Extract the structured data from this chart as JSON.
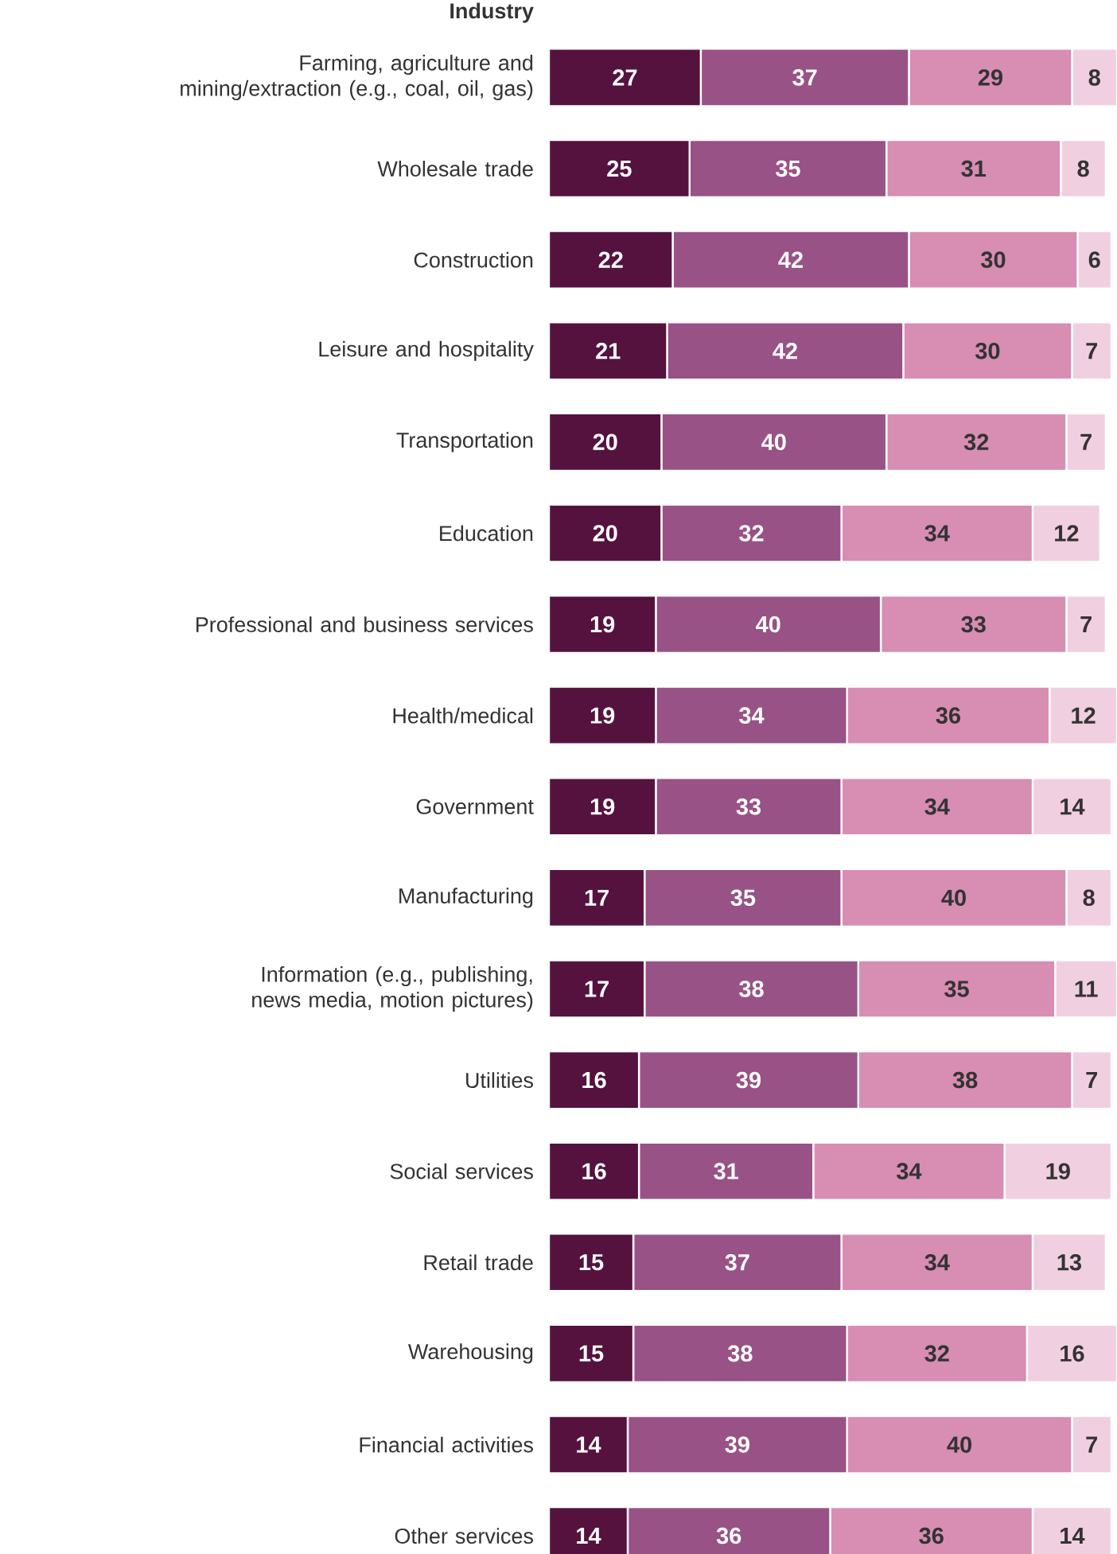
{
  "chart_data": {
    "type": "bar",
    "orientation": "horizontal",
    "stacked": true,
    "data_labels": true,
    "ylabel": "Industry",
    "categories": [
      "Farming, agriculture and mining/extraction (e.g., coal, oil, gas)",
      "Wholesale trade",
      "Construction",
      "Leisure and hospitality",
      "Transportation",
      "Education",
      "Professional and business services",
      "Health/medical",
      "Government",
      "Manufacturing",
      "Information (e.g., publishing, news media, motion pictures)",
      "Utilities",
      "Social services",
      "Retail trade",
      "Warehousing",
      "Financial activities",
      "Other services"
    ],
    "series": [
      {
        "color": "#55123f",
        "values": [
          27,
          25,
          22,
          21,
          20,
          20,
          19,
          19,
          19,
          17,
          17,
          16,
          16,
          15,
          15,
          14,
          14
        ]
      },
      {
        "color": "#985285",
        "values": [
          37,
          35,
          42,
          42,
          40,
          32,
          40,
          34,
          33,
          35,
          38,
          39,
          31,
          37,
          38,
          39,
          36
        ]
      },
      {
        "color": "#d88db2",
        "values": [
          29,
          31,
          30,
          30,
          32,
          34,
          33,
          36,
          34,
          40,
          35,
          38,
          34,
          34,
          32,
          40,
          36
        ]
      },
      {
        "color": "#f0cfe0",
        "values": [
          8,
          8,
          6,
          7,
          7,
          12,
          7,
          12,
          14,
          8,
          11,
          7,
          19,
          13,
          16,
          7,
          14
        ]
      }
    ]
  }
}
